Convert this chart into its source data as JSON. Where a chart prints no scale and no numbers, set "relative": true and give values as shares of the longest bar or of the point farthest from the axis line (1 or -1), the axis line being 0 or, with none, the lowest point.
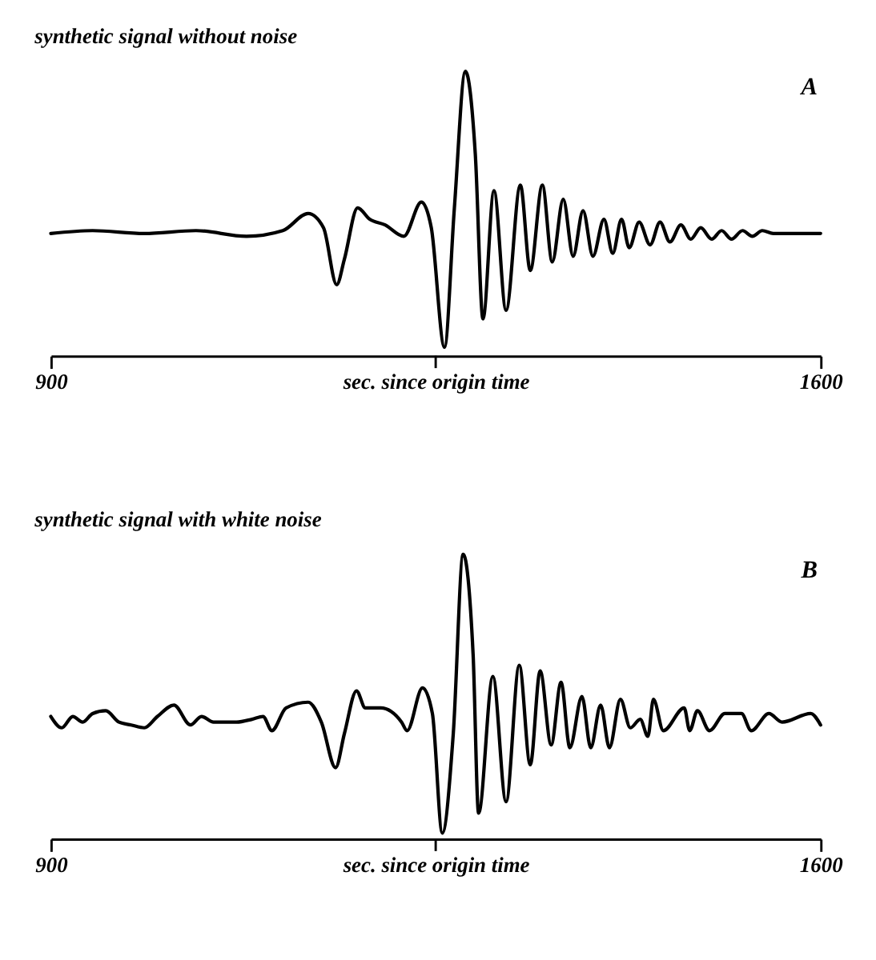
{
  "chart_data": [
    {
      "type": "line",
      "title": "synthetic signal without noise",
      "annotations": [
        "A"
      ],
      "xlabel": "sec. since origin time",
      "xlim": [
        900,
        1600
      ],
      "xticks": [
        900,
        {
          "value": 1250,
          "label": null
        },
        1600
      ],
      "relative": true,
      "grid": false,
      "series": [
        {
          "color": "#000000",
          "x": [
            900,
            938,
            985,
            1032,
            1078,
            1111,
            1134,
            1148,
            1160,
            1167,
            1179,
            1190,
            1204,
            1221,
            1237,
            1246,
            1258,
            1267,
            1277,
            1286,
            1293,
            1303,
            1314,
            1327,
            1336,
            1347,
            1356,
            1366,
            1375,
            1384,
            1393,
            1403,
            1411,
            1419,
            1426,
            1435,
            1445,
            1454,
            1463,
            1473,
            1482,
            1491,
            1501,
            1510,
            1519,
            1529,
            1538,
            1547,
            1557,
            1568,
            1600
          ],
          "values": [
            0.43,
            0.44,
            0.43,
            0.44,
            0.42,
            0.44,
            0.5,
            0.45,
            0.25,
            0.34,
            0.52,
            0.48,
            0.46,
            0.42,
            0.54,
            0.45,
            0.03,
            0.52,
            1.0,
            0.71,
            0.13,
            0.58,
            0.16,
            0.6,
            0.3,
            0.6,
            0.33,
            0.55,
            0.35,
            0.51,
            0.35,
            0.48,
            0.36,
            0.48,
            0.38,
            0.47,
            0.39,
            0.47,
            0.4,
            0.46,
            0.41,
            0.45,
            0.41,
            0.44,
            0.41,
            0.44,
            0.42,
            0.44,
            0.43,
            0.43,
            0.43
          ]
        }
      ]
    },
    {
      "type": "line",
      "title": "synthetic signal with white noise",
      "annotations": [
        "B"
      ],
      "xlabel": "sec. since origin time",
      "xlim": [
        900,
        1600
      ],
      "xticks": [
        900,
        {
          "value": 1250,
          "label": null
        },
        1600
      ],
      "relative": true,
      "grid": false,
      "series": [
        {
          "color": "#000000",
          "x": [
            900,
            910,
            920,
            929,
            938,
            950,
            962,
            973,
            985,
            997,
            1012,
            1027,
            1037,
            1048,
            1058,
            1069,
            1083,
            1093,
            1101,
            1114,
            1134,
            1146,
            1159,
            1167,
            1178,
            1186,
            1200,
            1219,
            1224,
            1238,
            1247,
            1256,
            1266,
            1275,
            1284,
            1289,
            1302,
            1314,
            1326,
            1336,
            1345,
            1355,
            1364,
            1372,
            1383,
            1391,
            1400,
            1408,
            1418,
            1427,
            1436,
            1443,
            1448,
            1457,
            1476,
            1481,
            1488,
            1499,
            1513,
            1528,
            1537,
            1553,
            1565,
            1591,
            1600
          ],
          "values": [
            0.43,
            0.39,
            0.43,
            0.41,
            0.44,
            0.45,
            0.41,
            0.4,
            0.39,
            0.43,
            0.47,
            0.4,
            0.43,
            0.41,
            0.41,
            0.41,
            0.42,
            0.43,
            0.38,
            0.46,
            0.48,
            0.41,
            0.25,
            0.37,
            0.52,
            0.46,
            0.46,
            0.41,
            0.38,
            0.53,
            0.44,
            0.02,
            0.37,
            1.0,
            0.65,
            0.09,
            0.57,
            0.13,
            0.61,
            0.26,
            0.59,
            0.33,
            0.55,
            0.32,
            0.5,
            0.32,
            0.47,
            0.32,
            0.49,
            0.39,
            0.42,
            0.36,
            0.49,
            0.38,
            0.46,
            0.38,
            0.45,
            0.38,
            0.44,
            0.44,
            0.38,
            0.44,
            0.41,
            0.44,
            0.4
          ]
        }
      ]
    }
  ]
}
